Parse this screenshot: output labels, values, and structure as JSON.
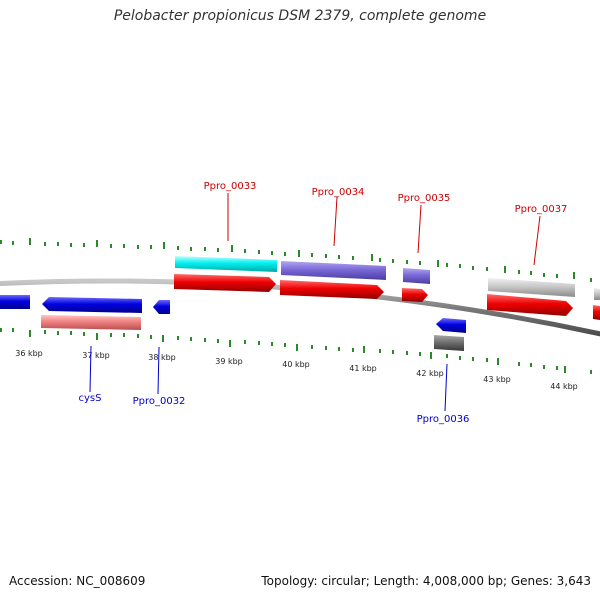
{
  "title": "Pelobacter propionicus DSM 2379, complete genome",
  "footer": {
    "accession": "Accession: NC_008609",
    "summary": "Topology: circular; Length: 4,008,000 bp; Genes: 3,643"
  },
  "colors": {
    "backbone": "#8a8a8a",
    "tick": "#2a8a2a",
    "forward_label": "#cc0000",
    "reverse_label": "#0000cc"
  },
  "scale": {
    "labels": [
      "36 kbp",
      "37 kbp",
      "38 kbp",
      "39 kbp",
      "40 kbp",
      "41 kbp",
      "42 kbp",
      "43 kbp",
      "44 kbp"
    ]
  },
  "gene_labels": {
    "forward": [
      "Ppro_0033",
      "Ppro_0034",
      "Ppro_0035",
      "Ppro_0037"
    ],
    "reverse": [
      "cysS",
      "Ppro_0032",
      "Ppro_0036"
    ]
  }
}
